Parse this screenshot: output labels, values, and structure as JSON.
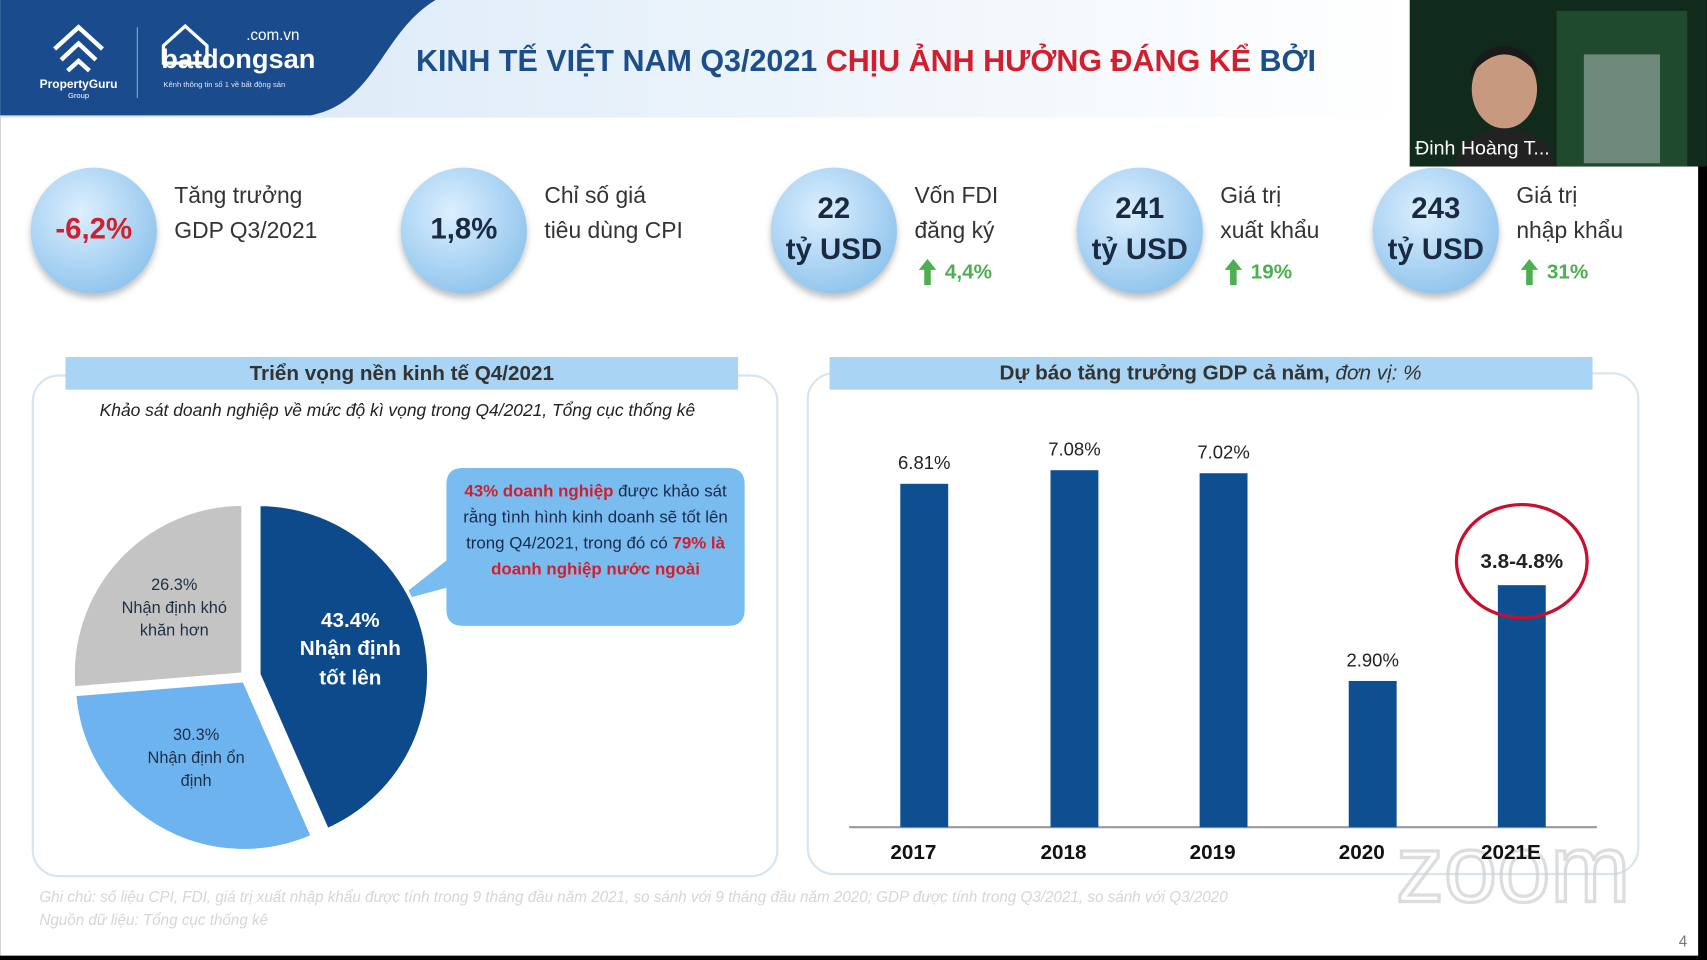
{
  "header": {
    "logo_1": "PropertyGuru",
    "logo_1_sub": "Group",
    "logo_2": "batdongsan",
    "logo_2_domain": ".com.vn",
    "logo_2_tagline": "Kênh thông tin số 1 về bất động sản",
    "title": "KINH TẾ VIỆT NAM Q3/2021",
    "title_highlight": "CHỊU ẢNH HƯỞNG ĐÁNG KỂ",
    "title_tail": "BỞI"
  },
  "video": {
    "name": "Đinh Hoàng T..."
  },
  "stats": [
    {
      "value": [
        "-6,2%"
      ],
      "label": [
        "Tăng trưởng",
        "GDP Q3/2021"
      ]
    },
    {
      "value": [
        "1,8%"
      ],
      "label": [
        "Chỉ số giá",
        "tiêu dùng CPI"
      ]
    },
    {
      "value": [
        "22",
        "tỷ USD"
      ],
      "label": [
        "Vốn FDI",
        "đăng ký"
      ],
      "change": "4,4%"
    },
    {
      "value": [
        "241",
        "tỷ USD"
      ],
      "label": [
        "Giá trị",
        "xuất khẩu"
      ],
      "change": "19%"
    },
    {
      "value": [
        "243",
        "tỷ USD"
      ],
      "label": [
        "Giá trị",
        "nhập khẩu"
      ],
      "change": "31%"
    }
  ],
  "chart_data": [
    {
      "type": "pie",
      "title": "Triển vọng nền kinh tế Q4/2021",
      "subtitle": "Khảo sát doanh nghiệp về mức độ kì vọng trong Q4/2021, Tổng cục thống kê",
      "categories": [
        "Nhận định tốt lên",
        "Nhận định ổn định",
        "Nhận định khó khăn hơn"
      ],
      "values": [
        43.4,
        30.3,
        26.3
      ],
      "value_labels": [
        "43.4%",
        "30.3%",
        "26.3%"
      ],
      "colors": [
        "#0d4a8c",
        "#6db3ef",
        "#c4c4c4"
      ],
      "callout": [
        "43% doanh nghiệp",
        "được khảo sát rằng tình hình kinh doanh sẽ tốt lên trong Q4/2021, trong đó có",
        "79% là doanh nghiệp nước ngoài"
      ]
    },
    {
      "type": "bar",
      "title": "Dự báo tăng trưởng GDP cả năm,",
      "unit_note": "đơn vị: %",
      "categories": [
        "2017",
        "2018",
        "2019",
        "2020",
        "2021E"
      ],
      "values": [
        6.81,
        7.08,
        7.02,
        2.9,
        4.8
      ],
      "value_labels": [
        "6.81%",
        "7.08%",
        "7.02%",
        "2.90%",
        "3.8-4.8%"
      ],
      "color": "#0d4f91"
    }
  ],
  "notes": {
    "note": "Ghi chú: số liệu CPI, FDI, giá trị xuất nhập khẩu được tính trong 9 tháng đầu năm 2021, so sánh với 9 tháng đầu năm 2020; GDP được tính trong Q3/2021, so sánh với Q3/2020",
    "source": "Nguồn dữ liệu: Tổng cục thống kê"
  },
  "page_number": "4",
  "watermark": "zoom"
}
